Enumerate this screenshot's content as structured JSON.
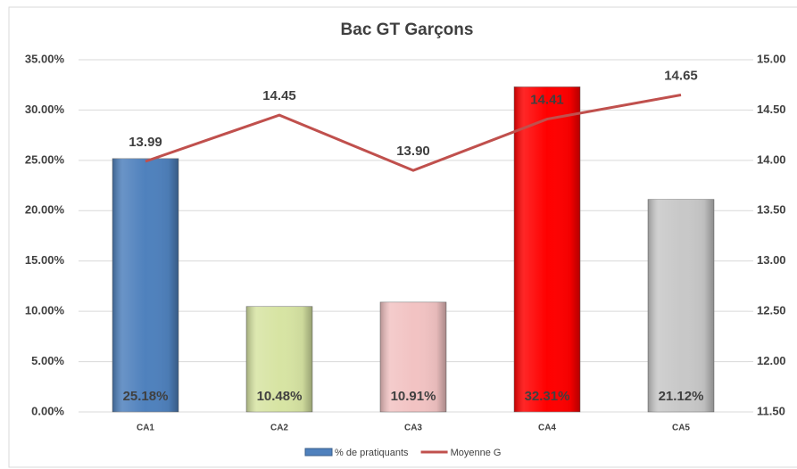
{
  "chart_data": {
    "type": "bar",
    "title": "Bac GT Garçons",
    "categories": [
      "CA1",
      "CA2",
      "CA3",
      "CA4",
      "CA5"
    ],
    "series": [
      {
        "name": "% de pratiquants",
        "type": "bar",
        "color": "#4f81bd",
        "colors": [
          "#4f81bd",
          "#d7e4a3",
          "#f2c3c3",
          "#ff0000",
          "#c8c8c8"
        ],
        "values": [
          25.18,
          10.48,
          10.91,
          32.31,
          21.12
        ],
        "value_labels": [
          "25.18%",
          "10.48%",
          "10.91%",
          "32.31%",
          "21.12%"
        ]
      },
      {
        "name": "Moyenne G",
        "type": "line",
        "axis": "y2",
        "color": "#c0504d",
        "values": [
          13.99,
          14.45,
          13.9,
          14.41,
          14.65
        ],
        "value_labels": [
          "13.99",
          "14.45",
          "13.90",
          "14.41",
          "14.65"
        ]
      }
    ],
    "ylim": [
      0,
      35
    ],
    "yticks": [
      {
        "value": 0,
        "label": "0.00%"
      },
      {
        "value": 5,
        "label": "5.00%"
      },
      {
        "value": 10,
        "label": "10.00%"
      },
      {
        "value": 15,
        "label": "15.00%"
      },
      {
        "value": 20,
        "label": "20.00%"
      },
      {
        "value": 25,
        "label": "25.00%"
      },
      {
        "value": 30,
        "label": "30.00%"
      },
      {
        "value": 35,
        "label": "35.00%"
      }
    ],
    "y2lim": [
      11.5,
      15
    ],
    "y2ticks": [
      {
        "value": 11.5,
        "label": "11.50"
      },
      {
        "value": 12,
        "label": "12.00"
      },
      {
        "value": 12.5,
        "label": "12.50"
      },
      {
        "value": 13,
        "label": "13.00"
      },
      {
        "value": 13.5,
        "label": "13.50"
      },
      {
        "value": 14,
        "label": "14.00"
      },
      {
        "value": 14.5,
        "label": "14.50"
      },
      {
        "value": 15,
        "label": "15.00"
      }
    ],
    "grid": true,
    "legend": "bottom"
  }
}
